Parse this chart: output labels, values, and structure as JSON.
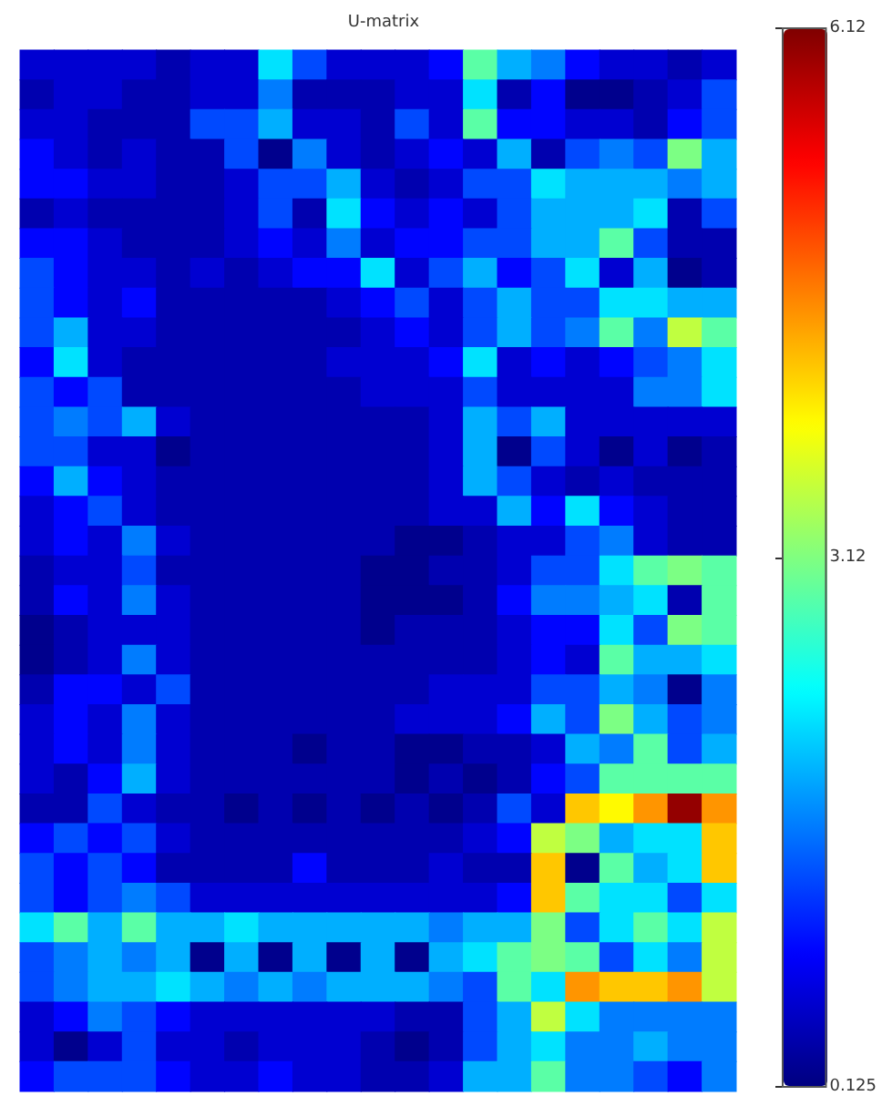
{
  "chart_data": {
    "type": "heatmap",
    "title": "U-matrix",
    "categories": [
      null,
      null,
      null,
      null,
      null,
      null,
      null,
      null,
      null,
      null,
      null,
      null,
      null,
      null,
      null,
      null,
      null,
      null,
      null,
      null,
      null
    ],
    "y_categories": [
      null,
      null,
      null,
      null,
      null,
      null,
      null,
      null,
      null,
      null,
      null,
      null,
      null,
      null,
      null,
      null,
      null,
      null,
      null,
      null,
      null,
      null,
      null,
      null,
      null,
      null,
      null,
      null,
      null,
      null,
      null,
      null,
      null,
      null,
      null
    ],
    "cells": [
      [
        0.6,
        0.6,
        0.6,
        0.6,
        0.4,
        0.6,
        0.6,
        2.2,
        1.3,
        0.6,
        0.6,
        0.6,
        0.9,
        2.9,
        1.9,
        1.6,
        0.9,
        0.6,
        0.6,
        0.4,
        0.6
      ],
      [
        0.4,
        0.6,
        0.6,
        0.4,
        0.4,
        0.6,
        0.6,
        1.6,
        0.4,
        0.4,
        0.4,
        0.6,
        0.6,
        2.2,
        0.4,
        0.9,
        0.2,
        0.2,
        0.4,
        0.6,
        1.3
      ],
      [
        0.6,
        0.6,
        0.4,
        0.4,
        0.4,
        1.3,
        1.3,
        1.9,
        0.6,
        0.6,
        0.4,
        1.3,
        0.6,
        2.9,
        0.9,
        0.9,
        0.6,
        0.6,
        0.4,
        0.9,
        1.3
      ],
      [
        0.9,
        0.6,
        0.4,
        0.6,
        0.4,
        0.4,
        1.3,
        0.2,
        1.6,
        0.6,
        0.4,
        0.6,
        0.9,
        0.6,
        1.9,
        0.4,
        1.3,
        1.6,
        1.3,
        3.1,
        1.9
      ],
      [
        0.9,
        0.9,
        0.6,
        0.6,
        0.4,
        0.4,
        0.6,
        1.3,
        1.3,
        1.9,
        0.6,
        0.4,
        0.6,
        1.3,
        1.3,
        2.2,
        1.9,
        1.9,
        1.9,
        1.6,
        1.9
      ],
      [
        0.4,
        0.6,
        0.4,
        0.4,
        0.4,
        0.4,
        0.6,
        1.3,
        0.4,
        2.2,
        0.9,
        0.6,
        0.9,
        0.6,
        1.3,
        1.9,
        1.9,
        1.9,
        2.2,
        0.4,
        1.3
      ],
      [
        0.9,
        0.9,
        0.6,
        0.4,
        0.4,
        0.4,
        0.6,
        0.9,
        0.6,
        1.6,
        0.6,
        0.9,
        0.9,
        1.3,
        1.3,
        1.9,
        1.9,
        2.9,
        1.3,
        0.4,
        0.4
      ],
      [
        1.3,
        0.9,
        0.6,
        0.6,
        0.4,
        0.6,
        0.4,
        0.6,
        0.9,
        0.9,
        2.2,
        0.6,
        1.3,
        1.9,
        0.9,
        1.3,
        2.2,
        0.6,
        1.9,
        0.2,
        0.4
      ],
      [
        1.3,
        0.9,
        0.6,
        0.9,
        0.4,
        0.4,
        0.4,
        0.4,
        0.4,
        0.6,
        0.9,
        1.3,
        0.6,
        1.3,
        1.9,
        1.3,
        1.3,
        2.2,
        2.2,
        1.9,
        1.9
      ],
      [
        1.3,
        1.9,
        0.6,
        0.6,
        0.4,
        0.4,
        0.4,
        0.4,
        0.4,
        0.4,
        0.6,
        0.9,
        0.6,
        1.3,
        1.9,
        1.3,
        1.6,
        2.9,
        1.6,
        3.5,
        2.9
      ],
      [
        0.9,
        2.2,
        0.6,
        0.4,
        0.4,
        0.4,
        0.4,
        0.4,
        0.4,
        0.6,
        0.6,
        0.6,
        0.9,
        2.2,
        0.6,
        0.9,
        0.6,
        0.9,
        1.3,
        1.6,
        2.2
      ],
      [
        1.3,
        0.9,
        1.3,
        0.4,
        0.4,
        0.4,
        0.4,
        0.4,
        0.4,
        0.4,
        0.6,
        0.6,
        0.6,
        1.3,
        0.6,
        0.6,
        0.6,
        0.6,
        1.6,
        1.6,
        2.2
      ],
      [
        1.3,
        1.6,
        1.3,
        1.9,
        0.6,
        0.4,
        0.4,
        0.4,
        0.4,
        0.4,
        0.4,
        0.4,
        0.6,
        1.9,
        1.3,
        1.9,
        0.6,
        0.6,
        0.6,
        0.6,
        0.6
      ],
      [
        1.3,
        1.3,
        0.6,
        0.6,
        0.2,
        0.4,
        0.4,
        0.4,
        0.4,
        0.4,
        0.4,
        0.4,
        0.6,
        1.9,
        0.2,
        1.3,
        0.6,
        0.2,
        0.6,
        0.2,
        0.4
      ],
      [
        0.9,
        1.9,
        0.9,
        0.6,
        0.4,
        0.4,
        0.4,
        0.4,
        0.4,
        0.4,
        0.4,
        0.4,
        0.6,
        1.9,
        1.3,
        0.6,
        0.4,
        0.6,
        0.4,
        0.4,
        0.4
      ],
      [
        0.6,
        0.9,
        1.3,
        0.6,
        0.4,
        0.4,
        0.4,
        0.4,
        0.4,
        0.4,
        0.4,
        0.4,
        0.6,
        0.6,
        1.9,
        0.9,
        2.2,
        0.9,
        0.6,
        0.4,
        0.4
      ],
      [
        0.6,
        0.9,
        0.6,
        1.6,
        0.6,
        0.4,
        0.4,
        0.4,
        0.4,
        0.4,
        0.4,
        0.2,
        0.2,
        0.4,
        0.6,
        0.6,
        1.3,
        1.6,
        0.6,
        0.4,
        0.4
      ],
      [
        0.4,
        0.6,
        0.6,
        1.3,
        0.4,
        0.4,
        0.4,
        0.4,
        0.4,
        0.4,
        0.2,
        0.2,
        0.4,
        0.4,
        0.6,
        1.3,
        1.3,
        2.2,
        2.9,
        3.1,
        2.9
      ],
      [
        0.4,
        0.9,
        0.6,
        1.6,
        0.6,
        0.4,
        0.4,
        0.4,
        0.4,
        0.4,
        0.2,
        0.2,
        0.2,
        0.4,
        0.9,
        1.6,
        1.6,
        1.9,
        2.2,
        0.4,
        2.9
      ],
      [
        0.2,
        0.4,
        0.6,
        0.6,
        0.6,
        0.4,
        0.4,
        0.4,
        0.4,
        0.4,
        0.2,
        0.4,
        0.4,
        0.4,
        0.6,
        0.9,
        0.9,
        2.2,
        1.3,
        3.1,
        2.9
      ],
      [
        0.2,
        0.4,
        0.6,
        1.6,
        0.6,
        0.4,
        0.4,
        0.4,
        0.4,
        0.4,
        0.4,
        0.4,
        0.4,
        0.4,
        0.6,
        0.9,
        0.6,
        2.9,
        1.9,
        1.9,
        2.2
      ],
      [
        0.4,
        0.9,
        0.9,
        0.6,
        1.3,
        0.4,
        0.4,
        0.4,
        0.4,
        0.4,
        0.4,
        0.4,
        0.6,
        0.6,
        0.6,
        1.3,
        1.3,
        1.9,
        1.6,
        0.2,
        1.6
      ],
      [
        0.6,
        0.9,
        0.6,
        1.6,
        0.6,
        0.4,
        0.4,
        0.4,
        0.4,
        0.4,
        0.4,
        0.6,
        0.6,
        0.6,
        0.9,
        1.9,
        1.3,
        3.1,
        1.9,
        1.3,
        1.6
      ],
      [
        0.6,
        0.9,
        0.6,
        1.6,
        0.6,
        0.4,
        0.4,
        0.4,
        0.2,
        0.4,
        0.4,
        0.2,
        0.2,
        0.4,
        0.4,
        0.6,
        1.9,
        1.6,
        2.9,
        1.3,
        1.9
      ],
      [
        0.6,
        0.4,
        0.9,
        1.9,
        0.6,
        0.4,
        0.4,
        0.4,
        0.4,
        0.4,
        0.4,
        0.2,
        0.4,
        0.2,
        0.4,
        0.9,
        1.3,
        2.9,
        2.9,
        2.9,
        2.9
      ],
      [
        0.4,
        0.4,
        1.3,
        0.6,
        0.4,
        0.4,
        0.2,
        0.4,
        0.2,
        0.4,
        0.2,
        0.4,
        0.2,
        0.4,
        1.3,
        0.6,
        4.2,
        3.9,
        4.5,
        6.0,
        4.5
      ],
      [
        0.9,
        1.3,
        0.9,
        1.3,
        0.6,
        0.4,
        0.4,
        0.4,
        0.4,
        0.4,
        0.4,
        0.4,
        0.4,
        0.6,
        0.9,
        3.5,
        3.1,
        1.9,
        2.2,
        2.2,
        4.2
      ],
      [
        1.3,
        0.9,
        1.3,
        0.9,
        0.4,
        0.4,
        0.4,
        0.4,
        0.9,
        0.4,
        0.4,
        0.4,
        0.6,
        0.4,
        0.4,
        4.2,
        0.2,
        2.9,
        1.9,
        2.2,
        4.2
      ],
      [
        1.3,
        0.9,
        1.3,
        1.6,
        1.3,
        0.6,
        0.6,
        0.6,
        0.6,
        0.6,
        0.6,
        0.6,
        0.6,
        0.6,
        0.9,
        4.2,
        2.9,
        2.2,
        2.2,
        1.3,
        2.2
      ],
      [
        2.2,
        2.9,
        1.9,
        2.9,
        1.9,
        1.9,
        2.2,
        1.9,
        1.9,
        1.9,
        1.9,
        1.9,
        1.6,
        1.9,
        1.9,
        3.1,
        1.3,
        2.2,
        2.9,
        2.2,
        3.5
      ],
      [
        1.3,
        1.6,
        1.9,
        1.6,
        1.9,
        0.2,
        1.9,
        0.2,
        1.9,
        0.2,
        1.9,
        0.2,
        1.9,
        2.2,
        2.9,
        3.1,
        2.9,
        1.3,
        2.2,
        1.6,
        3.5
      ],
      [
        1.3,
        1.6,
        1.9,
        1.9,
        2.2,
        1.9,
        1.6,
        1.9,
        1.6,
        1.9,
        1.9,
        1.9,
        1.6,
        1.3,
        2.9,
        2.2,
        4.5,
        4.2,
        4.2,
        4.5,
        3.5
      ],
      [
        0.6,
        0.9,
        1.6,
        1.3,
        0.9,
        0.6,
        0.6,
        0.6,
        0.6,
        0.6,
        0.6,
        0.4,
        0.4,
        1.3,
        1.9,
        3.5,
        2.2,
        1.6,
        1.6,
        1.6,
        1.6
      ],
      [
        0.6,
        0.2,
        0.6,
        1.3,
        0.6,
        0.6,
        0.4,
        0.6,
        0.6,
        0.6,
        0.4,
        0.2,
        0.4,
        1.3,
        1.9,
        2.2,
        1.6,
        1.6,
        1.9,
        1.6,
        1.6
      ],
      [
        0.9,
        1.3,
        1.3,
        1.3,
        0.9,
        0.6,
        0.6,
        0.9,
        0.6,
        0.6,
        0.4,
        0.4,
        0.6,
        1.9,
        1.9,
        2.9,
        1.6,
        1.6,
        1.3,
        0.9,
        1.6
      ]
    ],
    "clim": [
      0.125,
      6.12
    ],
    "cticks": [
      0.125,
      3.12,
      6.12
    ]
  }
}
